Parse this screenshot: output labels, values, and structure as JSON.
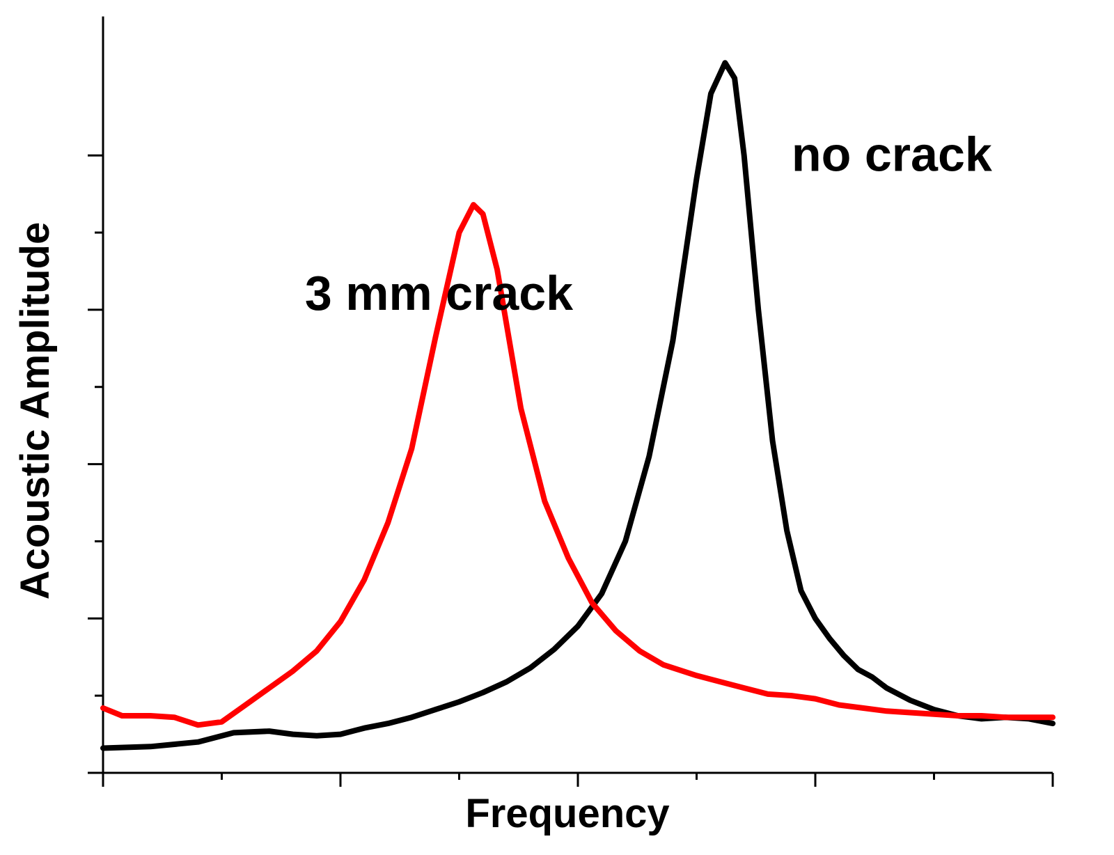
{
  "chart_data": {
    "type": "line",
    "xlabel": "Frequency",
    "ylabel": "Acoustic Amplitude",
    "xlim": [
      0,
      4
    ],
    "ylim": [
      0,
      4.7
    ],
    "x_ticks": [
      0,
      1,
      2,
      3,
      4
    ],
    "y_ticks": [
      0,
      1,
      2,
      3,
      4
    ],
    "tick_labels_shown": false,
    "grid": false,
    "legend": "none",
    "series": [
      {
        "name": "no crack",
        "color": "#000000",
        "points": [
          [
            0.0,
            0.16
          ],
          [
            0.2,
            0.17
          ],
          [
            0.4,
            0.2
          ],
          [
            0.55,
            0.26
          ],
          [
            0.7,
            0.27
          ],
          [
            0.8,
            0.25
          ],
          [
            0.9,
            0.24
          ],
          [
            1.0,
            0.25
          ],
          [
            1.1,
            0.29
          ],
          [
            1.2,
            0.32
          ],
          [
            1.3,
            0.36
          ],
          [
            1.4,
            0.41
          ],
          [
            1.5,
            0.46
          ],
          [
            1.6,
            0.52
          ],
          [
            1.7,
            0.59
          ],
          [
            1.8,
            0.68
          ],
          [
            1.9,
            0.8
          ],
          [
            2.0,
            0.95
          ],
          [
            2.1,
            1.16
          ],
          [
            2.2,
            1.5
          ],
          [
            2.3,
            2.05
          ],
          [
            2.4,
            2.8
          ],
          [
            2.5,
            3.85
          ],
          [
            2.56,
            4.4
          ],
          [
            2.62,
            4.6
          ],
          [
            2.66,
            4.5
          ],
          [
            2.7,
            4.0
          ],
          [
            2.76,
            3.0
          ],
          [
            2.82,
            2.15
          ],
          [
            2.88,
            1.57
          ],
          [
            2.94,
            1.18
          ],
          [
            3.0,
            1.0
          ],
          [
            3.06,
            0.87
          ],
          [
            3.12,
            0.76
          ],
          [
            3.18,
            0.67
          ],
          [
            3.24,
            0.62
          ],
          [
            3.3,
            0.55
          ],
          [
            3.4,
            0.47
          ],
          [
            3.5,
            0.41
          ],
          [
            3.6,
            0.37
          ],
          [
            3.7,
            0.35
          ],
          [
            3.8,
            0.36
          ],
          [
            3.9,
            0.35
          ],
          [
            4.0,
            0.32
          ]
        ]
      },
      {
        "name": "3 mm crack",
        "color": "#ff0000",
        "points": [
          [
            0.0,
            0.42
          ],
          [
            0.08,
            0.37
          ],
          [
            0.2,
            0.37
          ],
          [
            0.3,
            0.36
          ],
          [
            0.4,
            0.31
          ],
          [
            0.5,
            0.33
          ],
          [
            0.6,
            0.44
          ],
          [
            0.7,
            0.55
          ],
          [
            0.8,
            0.66
          ],
          [
            0.9,
            0.79
          ],
          [
            1.0,
            0.98
          ],
          [
            1.1,
            1.25
          ],
          [
            1.2,
            1.62
          ],
          [
            1.3,
            2.1
          ],
          [
            1.4,
            2.82
          ],
          [
            1.5,
            3.5
          ],
          [
            1.56,
            3.68
          ],
          [
            1.6,
            3.62
          ],
          [
            1.66,
            3.26
          ],
          [
            1.76,
            2.36
          ],
          [
            1.86,
            1.76
          ],
          [
            1.96,
            1.39
          ],
          [
            2.06,
            1.1
          ],
          [
            2.16,
            0.92
          ],
          [
            2.26,
            0.79
          ],
          [
            2.36,
            0.7
          ],
          [
            2.5,
            0.63
          ],
          [
            2.6,
            0.59
          ],
          [
            2.7,
            0.55
          ],
          [
            2.8,
            0.51
          ],
          [
            2.9,
            0.5
          ],
          [
            3.0,
            0.48
          ],
          [
            3.1,
            0.44
          ],
          [
            3.2,
            0.42
          ],
          [
            3.3,
            0.4
          ],
          [
            3.4,
            0.39
          ],
          [
            3.5,
            0.38
          ],
          [
            3.6,
            0.37
          ],
          [
            3.7,
            0.37
          ],
          [
            3.8,
            0.36
          ],
          [
            3.9,
            0.36
          ],
          [
            4.0,
            0.36
          ]
        ]
      }
    ],
    "annotations": [
      {
        "text": "no crack",
        "near": [
          2.9,
          3.9
        ]
      },
      {
        "text": "3 mm crack",
        "near": [
          0.85,
          3.0
        ]
      }
    ]
  }
}
